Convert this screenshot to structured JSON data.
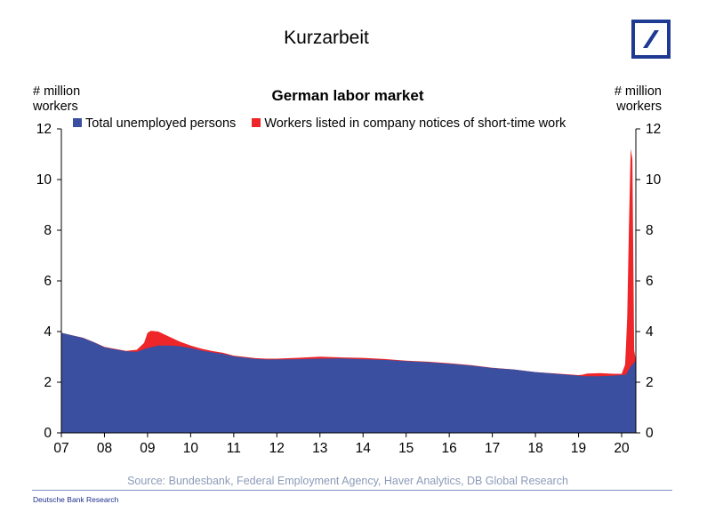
{
  "slide": {
    "title": "Kurzarbeit",
    "brand": "Deutsche Bank Research"
  },
  "colors": {
    "unemployed": "#3a4fa0",
    "short_time": "#ee2629",
    "brand_blue": "#1f3a93",
    "source_text": "#8c9bb8"
  },
  "logo": {
    "icon": "deutsche-bank-logo"
  },
  "chart_data": {
    "type": "area",
    "stacked": true,
    "title": "German labor market",
    "ylabel_left": "# million workers",
    "ylabel_right": "# million workers",
    "source": "Source: Bundesbank, Federal Employment Agency, Haver Analytics, DB Global Research",
    "ylim": [
      0,
      12
    ],
    "yticks": [
      0,
      2,
      4,
      6,
      8,
      10,
      12
    ],
    "xlim": [
      2007.0,
      2020.33
    ],
    "xtick_values": [
      2007,
      2008,
      2009,
      2010,
      2011,
      2012,
      2013,
      2014,
      2015,
      2016,
      2017,
      2018,
      2019,
      2020
    ],
    "xtick_labels": [
      "07",
      "08",
      "09",
      "10",
      "11",
      "12",
      "13",
      "14",
      "15",
      "16",
      "17",
      "18",
      "19",
      "20"
    ],
    "legend_position": "top",
    "series": [
      {
        "name": "Total unemployed persons",
        "color": "#3a4fa0",
        "points": [
          [
            2007.0,
            3.95
          ],
          [
            2007.25,
            3.85
          ],
          [
            2007.5,
            3.75
          ],
          [
            2007.75,
            3.58
          ],
          [
            2008.0,
            3.38
          ],
          [
            2008.25,
            3.3
          ],
          [
            2008.5,
            3.22
          ],
          [
            2008.75,
            3.2
          ],
          [
            2009.0,
            3.35
          ],
          [
            2009.25,
            3.45
          ],
          [
            2009.5,
            3.45
          ],
          [
            2009.75,
            3.42
          ],
          [
            2010.0,
            3.35
          ],
          [
            2010.25,
            3.25
          ],
          [
            2010.5,
            3.18
          ],
          [
            2010.75,
            3.12
          ],
          [
            2011.0,
            3.02
          ],
          [
            2011.25,
            2.97
          ],
          [
            2011.5,
            2.92
          ],
          [
            2011.75,
            2.9
          ],
          [
            2012.0,
            2.9
          ],
          [
            2012.5,
            2.91
          ],
          [
            2013.0,
            2.93
          ],
          [
            2013.5,
            2.94
          ],
          [
            2014.0,
            2.91
          ],
          [
            2014.5,
            2.88
          ],
          [
            2015.0,
            2.83
          ],
          [
            2015.5,
            2.79
          ],
          [
            2016.0,
            2.73
          ],
          [
            2016.5,
            2.66
          ],
          [
            2017.0,
            2.56
          ],
          [
            2017.5,
            2.5
          ],
          [
            2018.0,
            2.4
          ],
          [
            2018.5,
            2.33
          ],
          [
            2019.0,
            2.26
          ],
          [
            2019.1,
            2.24
          ],
          [
            2019.5,
            2.24
          ],
          [
            2019.8,
            2.26
          ],
          [
            2020.0,
            2.28
          ],
          [
            2020.1,
            2.3
          ],
          [
            2020.2,
            2.6
          ],
          [
            2020.33,
            2.85
          ]
        ]
      },
      {
        "name": "Workers listed in company notices of short-time work",
        "color": "#ee2629",
        "points": [
          [
            2007.0,
            0.0
          ],
          [
            2008.5,
            0.02
          ],
          [
            2008.75,
            0.08
          ],
          [
            2008.92,
            0.25
          ],
          [
            2009.0,
            0.6
          ],
          [
            2009.08,
            0.65
          ],
          [
            2009.25,
            0.55
          ],
          [
            2009.5,
            0.35
          ],
          [
            2009.75,
            0.18
          ],
          [
            2010.0,
            0.1
          ],
          [
            2010.5,
            0.05
          ],
          [
            2011.0,
            0.03
          ],
          [
            2012.0,
            0.03
          ],
          [
            2013.0,
            0.08
          ],
          [
            2013.5,
            0.04
          ],
          [
            2014.0,
            0.05
          ],
          [
            2015.0,
            0.02
          ],
          [
            2016.0,
            0.02
          ],
          [
            2017.0,
            0.01
          ],
          [
            2018.0,
            0.0
          ],
          [
            2019.0,
            0.02
          ],
          [
            2019.2,
            0.1
          ],
          [
            2019.5,
            0.12
          ],
          [
            2019.75,
            0.08
          ],
          [
            2020.0,
            0.05
          ],
          [
            2020.08,
            0.4
          ],
          [
            2020.13,
            2.2
          ],
          [
            2020.17,
            5.6
          ],
          [
            2020.21,
            8.6
          ],
          [
            2020.25,
            8.1
          ],
          [
            2020.29,
            0.5
          ],
          [
            2020.33,
            0.0
          ]
        ]
      }
    ]
  }
}
